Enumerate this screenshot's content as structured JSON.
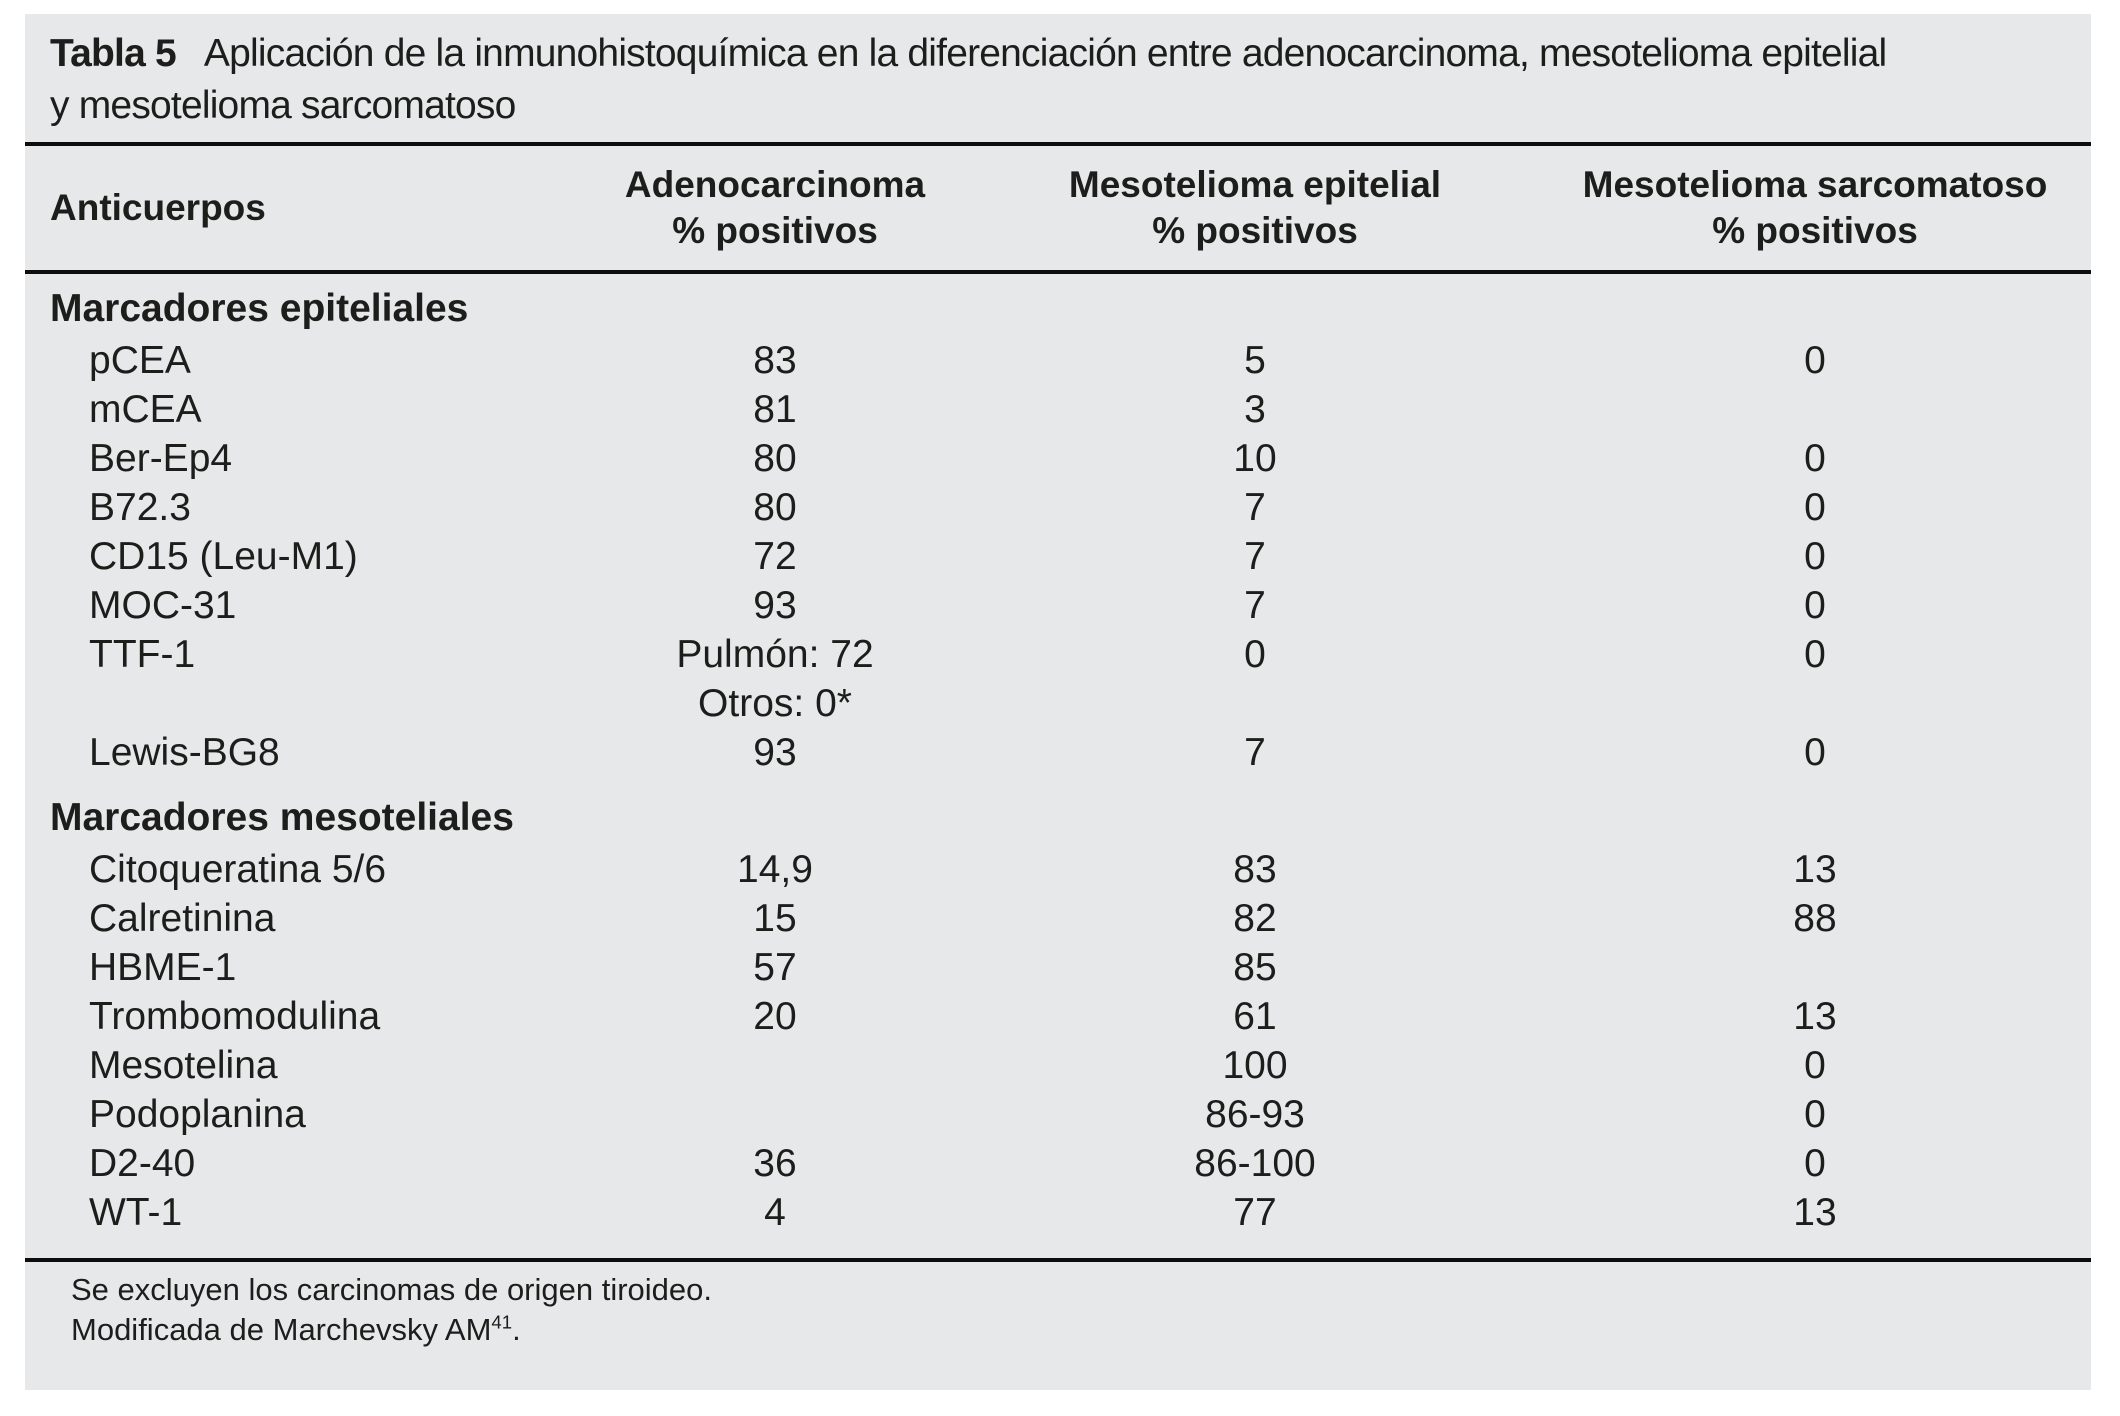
{
  "colors": {
    "page_bg": "#ffffff",
    "panel_bg": "#e7e8e9",
    "text": "#1d1d1b",
    "rule": "#0d0d0d"
  },
  "title": {
    "label": "Tabla 5",
    "line1": "Aplicación de la inmunohistoquímica en la diferenciación entre adenocarcinoma, mesotelioma epitelial",
    "line2": "y mesotelioma sarcomatoso"
  },
  "table": {
    "columns": [
      {
        "line1": "Anticuerpos",
        "line2": ""
      },
      {
        "line1": "Adenocarcinoma",
        "line2": "% positivos"
      },
      {
        "line1": "Mesotelioma epitelial",
        "line2": "% positivos"
      },
      {
        "line1": "Mesotelioma sarcomatoso",
        "line2": "% positivos"
      }
    ],
    "sections": [
      {
        "header": "Marcadores epiteliales",
        "rows": [
          {
            "label": "pCEA",
            "adeno": "83",
            "epitelial": "5",
            "sarcomatoso": "0"
          },
          {
            "label": "mCEA",
            "adeno": "81",
            "epitelial": "3",
            "sarcomatoso": ""
          },
          {
            "label": "Ber-Ep4",
            "adeno": "80",
            "epitelial": "10",
            "sarcomatoso": "0"
          },
          {
            "label": "B72.3",
            "adeno": "80",
            "epitelial": "7",
            "sarcomatoso": "0"
          },
          {
            "label": "CD15 (Leu-M1)",
            "adeno": "72",
            "epitelial": "7",
            "sarcomatoso": "0"
          },
          {
            "label": "MOC-31",
            "adeno": "93",
            "epitelial": "7",
            "sarcomatoso": "0"
          },
          {
            "label": "TTF-1",
            "adeno": "Pulmón: 72",
            "adeno_line2": "Otros: 0*",
            "epitelial": "0",
            "sarcomatoso": "0"
          },
          {
            "label": "Lewis-BG8",
            "adeno": "93",
            "epitelial": "7",
            "sarcomatoso": "0"
          }
        ]
      },
      {
        "header": "Marcadores mesoteliales",
        "rows": [
          {
            "label": "Citoqueratina 5/6",
            "adeno": "14,9",
            "epitelial": "83",
            "sarcomatoso": "13"
          },
          {
            "label": "Calretinina",
            "adeno": "15",
            "epitelial": "82",
            "sarcomatoso": "88"
          },
          {
            "label": "HBME-1",
            "adeno": "57",
            "epitelial": "85",
            "sarcomatoso": ""
          },
          {
            "label": "Trombomodulina",
            "adeno": "20",
            "epitelial": "61",
            "sarcomatoso": "13"
          },
          {
            "label": "Mesotelina",
            "adeno": "",
            "epitelial": "100",
            "sarcomatoso": "0"
          },
          {
            "label": "Podoplanina",
            "adeno": "",
            "epitelial": "86-93",
            "sarcomatoso": "0"
          },
          {
            "label": "D2-40",
            "adeno": "36",
            "epitelial": "86-100",
            "sarcomatoso": "0"
          },
          {
            "label": "WT-1",
            "adeno": "4",
            "epitelial": "77",
            "sarcomatoso": "13"
          }
        ]
      }
    ]
  },
  "footnotes": {
    "line1": "Se excluyen los carcinomas de origen tiroideo.",
    "line2": {
      "text": "Modificada de Marchevsky AM",
      "sup": "41",
      "suffix": "."
    }
  }
}
